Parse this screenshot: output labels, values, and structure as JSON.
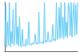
{
  "chart_data": {
    "type": "line",
    "color": "#5bc8f5",
    "grid": false,
    "tick_labels": false,
    "xlim": [
      0,
      79
    ],
    "ylim": [
      0,
      100
    ],
    "x": [
      0,
      1,
      2,
      3,
      4,
      5,
      6,
      7,
      8,
      9,
      10,
      11,
      12,
      13,
      14,
      15,
      16,
      17,
      18,
      19,
      20,
      21,
      22,
      23,
      24,
      25,
      26,
      27,
      28,
      29,
      30,
      31,
      32,
      33,
      34,
      35,
      36,
      37,
      38,
      39,
      40,
      41,
      42,
      43,
      44,
      45,
      46,
      47,
      48,
      49,
      50,
      51,
      52,
      53,
      54,
      55,
      56,
      57,
      58,
      59,
      60,
      61,
      62,
      63,
      64,
      65,
      66,
      67,
      68,
      69,
      70,
      71,
      72,
      73,
      74,
      75,
      76,
      77,
      78,
      79
    ],
    "values": [
      10,
      95,
      8,
      60,
      12,
      100,
      9,
      40,
      15,
      85,
      11,
      30,
      100,
      14,
      50,
      10,
      70,
      12,
      9,
      45,
      11,
      13,
      10,
      25,
      12,
      14,
      60,
      13,
      15,
      12,
      18,
      14,
      16,
      35,
      15,
      17,
      14,
      80,
      16,
      18,
      17,
      20,
      15,
      100,
      18,
      22,
      19,
      40,
      21,
      18,
      23,
      20,
      55,
      22,
      25,
      21,
      100,
      24,
      30,
      90,
      26,
      100,
      28,
      70,
      25,
      100,
      30,
      60,
      27,
      100,
      85,
      32,
      100,
      29,
      75,
      100,
      31,
      95,
      34,
      100
    ]
  }
}
